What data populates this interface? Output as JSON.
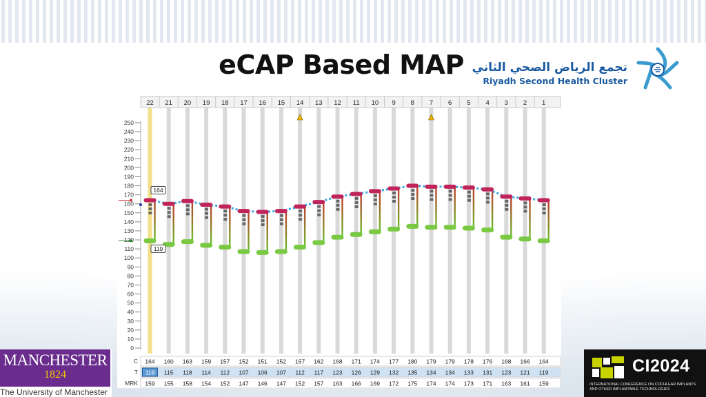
{
  "slide": {
    "title": "eCAP Based MAP"
  },
  "logo_right": {
    "arabic_name": "تجمع الرياض الصحي الثاني",
    "english_name": "Riyadh Second Health Cluster"
  },
  "logo_manchester": {
    "name": "MANCHESTER",
    "year": "1824",
    "university": "The University of Manchester"
  },
  "logo_ci": {
    "title": "CI2024",
    "subtitle": "INTERNATIONAL CONFERENCE ON COCHLEAR IMPLANTS AND OTHER IMPLANTABLE TECHNOLOGIES"
  },
  "chart_data": {
    "type": "line",
    "electrodes": [
      22,
      21,
      20,
      19,
      18,
      17,
      16,
      15,
      14,
      13,
      12,
      11,
      10,
      9,
      8,
      7,
      6,
      5,
      4,
      3,
      2,
      1
    ],
    "y_ticks": [
      0,
      10,
      20,
      30,
      40,
      50,
      60,
      70,
      80,
      90,
      100,
      110,
      120,
      130,
      140,
      150,
      160,
      170,
      180,
      190,
      200,
      210,
      220,
      230,
      240,
      250
    ],
    "ylim": [
      0,
      255
    ],
    "row_labels": {
      "c": "C",
      "t": "T",
      "mrk": "MRK"
    },
    "c_levels": [
      164,
      160,
      163,
      159,
      157,
      152,
      151,
      152,
      157,
      162,
      168,
      171,
      174,
      177,
      180,
      179,
      179,
      178,
      176,
      168,
      166,
      164
    ],
    "t_levels": [
      119,
      115,
      118,
      114,
      112,
      107,
      106,
      107,
      112,
      117,
      123,
      126,
      129,
      132,
      135,
      134,
      134,
      133,
      131,
      123,
      121,
      119
    ],
    "mrk_levels": [
      159,
      155,
      158,
      154,
      152,
      147,
      146,
      147,
      152,
      157,
      163,
      166,
      169,
      172,
      175,
      174,
      174,
      173,
      171,
      163,
      161,
      159
    ],
    "c_handle_label": "164",
    "t_handle_label": "119",
    "selected_electrode": 22,
    "warning_electrodes": [
      14,
      7
    ],
    "colors": {
      "c_marker": "#c0245a",
      "c_line": "#3aa6e0",
      "t_marker": "#7ac943",
      "selected_col": "#f2e08a",
      "selected_cell": "#5a9bd5",
      "t_row_bg": "#cfe2f3",
      "warning": "#f0b400"
    },
    "grid": false,
    "legend": "none"
  }
}
